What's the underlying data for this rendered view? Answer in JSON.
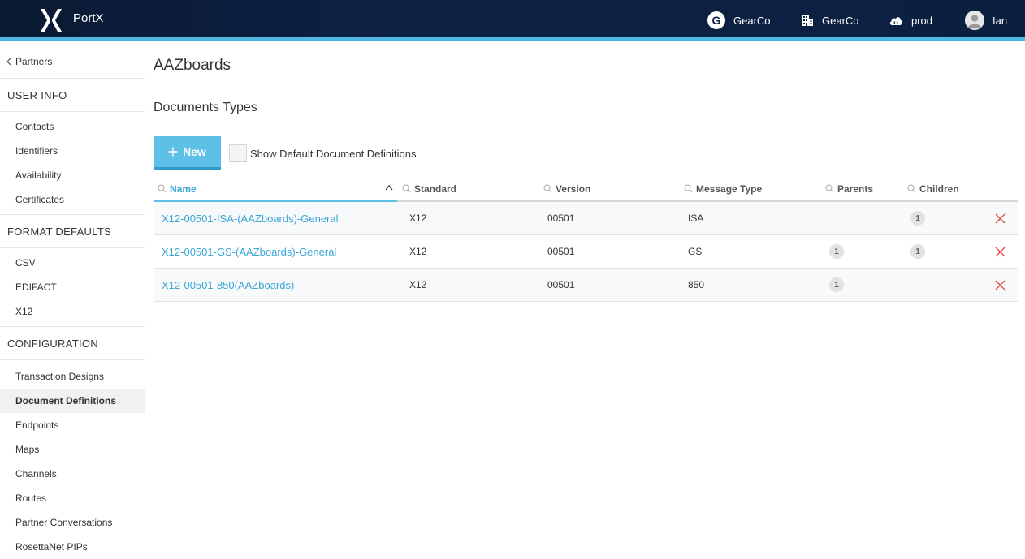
{
  "header": {
    "brand": "PortX",
    "org_badge_letter": "G",
    "org_label": "GearCo",
    "company_label": "GearCo",
    "env_label": "prod",
    "user_label": "Ian"
  },
  "sidebar": {
    "back_label": "Partners",
    "sections": [
      {
        "title": "USER INFO",
        "items": [
          "Contacts",
          "Identifiers",
          "Availability",
          "Certificates"
        ]
      },
      {
        "title": "FORMAT DEFAULTS",
        "items": [
          "CSV",
          "EDIFACT",
          "X12"
        ]
      },
      {
        "title": "CONFIGURATION",
        "items": [
          "Transaction Designs",
          "Document Definitions",
          "Endpoints",
          "Maps",
          "Channels",
          "Routes",
          "Partner Conversations",
          "RosettaNet PIPs"
        ]
      }
    ],
    "active_item": "Document Definitions"
  },
  "main": {
    "title": "AAZboards",
    "subtitle": "Documents Types",
    "new_button_label": "New",
    "show_default_label": "Show Default Document Definitions",
    "table": {
      "columns": [
        "Name",
        "Standard",
        "Version",
        "Message Type",
        "Parents",
        "Children"
      ],
      "sorted_column": "Name",
      "rows": [
        {
          "name": "X12-00501-ISA-(AAZboards)-General",
          "standard": "X12",
          "version": "00501",
          "message_type": "ISA",
          "parents": "",
          "children": "1"
        },
        {
          "name": "X12-00501-GS-(AAZboards)-General",
          "standard": "X12",
          "version": "00501",
          "message_type": "GS",
          "parents": "1",
          "children": "1"
        },
        {
          "name": "X12-00501-850(AAZboards)",
          "standard": "X12",
          "version": "00501",
          "message_type": "850",
          "parents": "1",
          "children": ""
        }
      ]
    }
  },
  "colors": {
    "accent": "#5dc0e6",
    "link": "#3aa6d6",
    "header_bg": "#0d2145",
    "delete": "#e0493b"
  },
  "icons": [
    "portx-logo-icon",
    "building-icon",
    "cloud-icon",
    "user-avatar-icon",
    "chevron-left-icon",
    "plus-icon",
    "search-icon",
    "sort-up-icon",
    "close-icon"
  ]
}
